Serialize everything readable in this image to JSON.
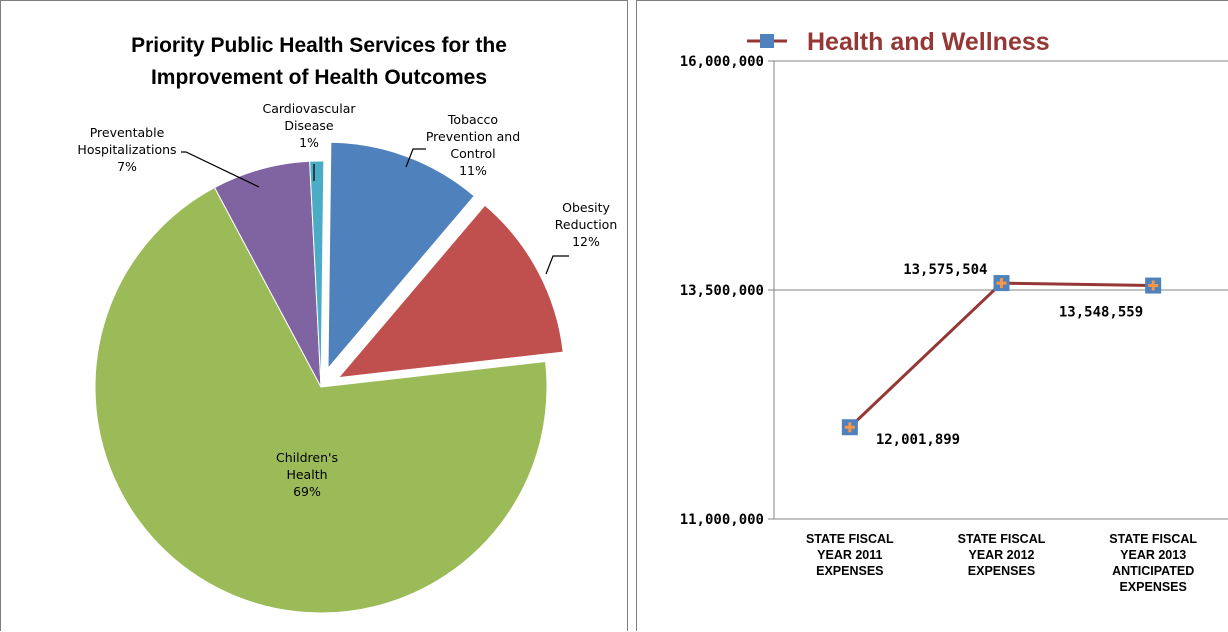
{
  "chart_data": [
    {
      "type": "pie",
      "title": "Priority Public Health Services for the Improvement of Health Outcomes",
      "title_lines": [
        "Priority Public Health Services for the",
        "Improvement of Health Outcomes"
      ],
      "slices": [
        {
          "label": "Tobacco Prevention and Control",
          "label_lines": [
            "Tobacco",
            "Prevention and",
            "Control"
          ],
          "percent": "11%",
          "value": 11,
          "color": "#4f81bd",
          "exploded": true
        },
        {
          "label": "Obesity Reduction",
          "label_lines": [
            "Obesity",
            "Reduction"
          ],
          "percent": "12%",
          "value": 12,
          "color": "#c0504d",
          "exploded": true
        },
        {
          "label": "Children's Health",
          "label_lines": [
            "Children's",
            "Health"
          ],
          "percent": "69%",
          "value": 69,
          "color": "#9bbb59",
          "exploded": false
        },
        {
          "label": "Preventable Hospitalizations",
          "label_lines": [
            "Preventable",
            "Hospitalizations"
          ],
          "percent": "7%",
          "value": 7,
          "color": "#8064a2",
          "exploded": false
        },
        {
          "label": "Cardiovascular Disease",
          "label_lines": [
            "Cardiovascular",
            "Disease"
          ],
          "percent": "1%",
          "value": 1,
          "color": "#4bacc6",
          "exploded": false
        }
      ]
    },
    {
      "type": "line",
      "categories": [
        [
          "STATE FISCAL",
          "YEAR 2011",
          "EXPENSES"
        ],
        [
          "STATE FISCAL",
          "YEAR 2012",
          "EXPENSES"
        ],
        [
          "STATE FISCAL",
          "YEAR 2013",
          "ANTICIPATED",
          "EXPENSES"
        ]
      ],
      "series": [
        {
          "name": "Health and Wellness",
          "values": [
            12001899,
            13575504,
            13548559
          ],
          "labels": [
            "12,001,899",
            "13,575,504",
            "13,548,559"
          ],
          "line_color": "#953735",
          "marker_color": "#4f81bd",
          "marker_inner_color": "#f79646"
        }
      ],
      "ylim": [
        11000000,
        16000000
      ],
      "yticks": [
        11000000,
        13500000,
        16000000
      ],
      "ytick_labels": [
        "11,000,000",
        "13,500,000",
        "16,000,000"
      ],
      "legend_position": "top",
      "grid": "horizontal"
    }
  ]
}
